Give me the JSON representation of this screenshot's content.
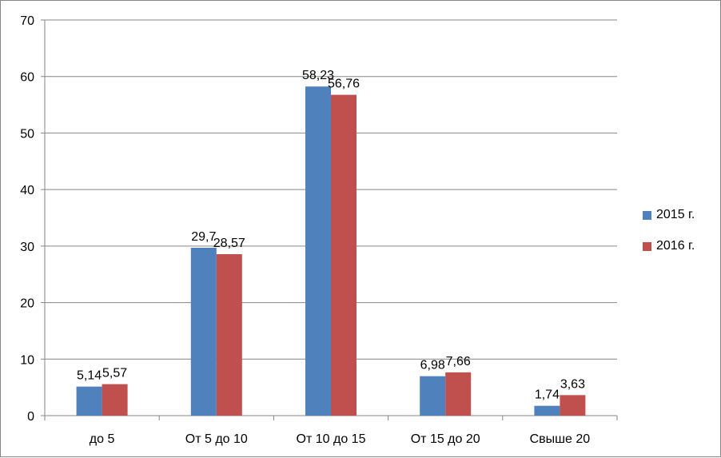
{
  "chart_data": {
    "type": "bar",
    "title": "",
    "xlabel": "",
    "ylabel": "",
    "categories": [
      "до 5",
      "От 5 до 10",
      "От 10 до 15",
      "От 15 до 20",
      "Свыше 20"
    ],
    "series": [
      {
        "name": "2015 г.",
        "color": "#4F81BD",
        "values": [
          5.14,
          29.7,
          58.23,
          6.98,
          1.74
        ],
        "labels": [
          "5,14",
          "29,7",
          "58,23",
          "6,98",
          "1,74"
        ]
      },
      {
        "name": "2016 г.",
        "color": "#C0504D",
        "values": [
          5.57,
          28.57,
          56.76,
          7.66,
          3.63
        ],
        "labels": [
          "5,57",
          "28,57",
          "56,76",
          "7,66",
          "3,63"
        ]
      }
    ],
    "ylim": [
      0,
      70
    ],
    "yticks": [
      0,
      10,
      20,
      30,
      40,
      50,
      60,
      70
    ],
    "grid": true,
    "legend_position": "right"
  }
}
